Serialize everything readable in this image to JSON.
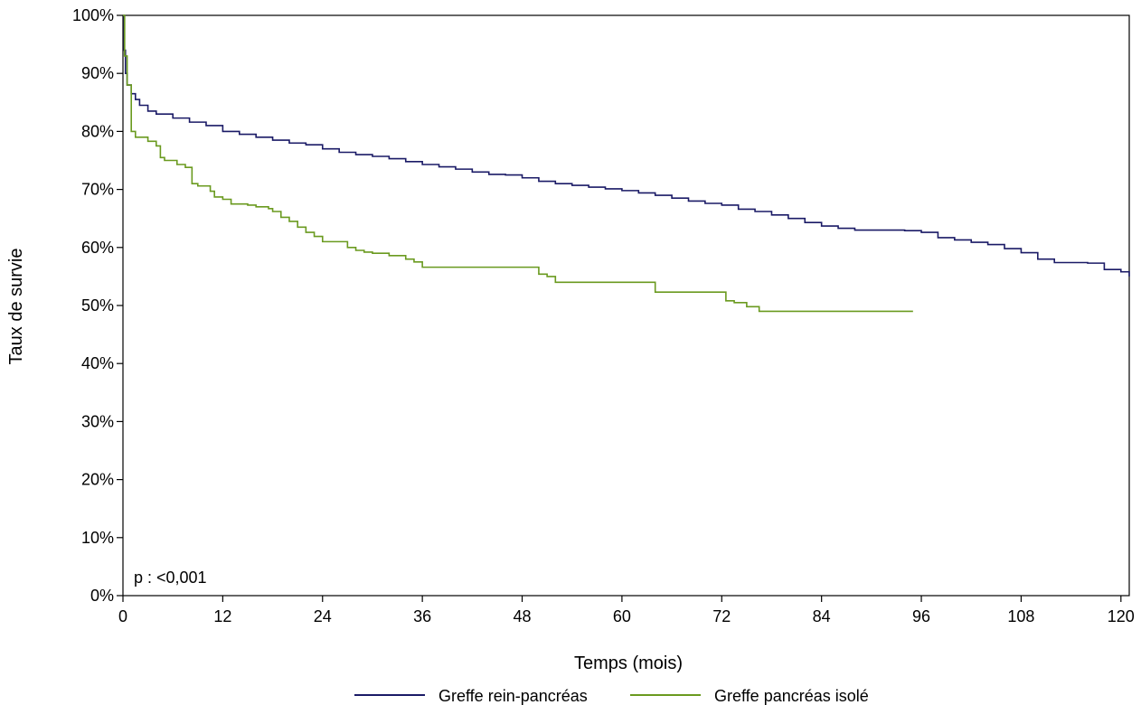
{
  "chart_data": {
    "type": "line",
    "step": true,
    "xlabel": "Temps (mois)",
    "ylabel": "Taux de survie",
    "xlim": [
      0,
      121
    ],
    "ylim": [
      0,
      100
    ],
    "x_ticks": [
      0,
      12,
      24,
      36,
      48,
      60,
      72,
      84,
      96,
      108,
      120
    ],
    "y_ticks": [
      0,
      10,
      20,
      30,
      40,
      50,
      60,
      70,
      80,
      90,
      100
    ],
    "y_tick_labels": [
      "0%",
      "10%",
      "20%",
      "30%",
      "40%",
      "50%",
      "60%",
      "70%",
      "80%",
      "90%",
      "100%"
    ],
    "grid": false,
    "legend_position": "bottom",
    "annotation": "p : <0,001",
    "series": [
      {
        "name": "Greffe rein-pancréas",
        "color": "#1a1a66",
        "points": [
          [
            0,
            100
          ],
          [
            0.15,
            94
          ],
          [
            0.3,
            90
          ],
          [
            0.5,
            88
          ],
          [
            1,
            86.5
          ],
          [
            1.5,
            85.5
          ],
          [
            2,
            84.5
          ],
          [
            3,
            83.5
          ],
          [
            4,
            83
          ],
          [
            6,
            82.3
          ],
          [
            8,
            81.6
          ],
          [
            10,
            81
          ],
          [
            12,
            80
          ],
          [
            14,
            79.5
          ],
          [
            16,
            79
          ],
          [
            18,
            78.5
          ],
          [
            20,
            78
          ],
          [
            22,
            77.7
          ],
          [
            24,
            77
          ],
          [
            26,
            76.4
          ],
          [
            28,
            76
          ],
          [
            30,
            75.7
          ],
          [
            32,
            75.3
          ],
          [
            34,
            74.8
          ],
          [
            36,
            74.3
          ],
          [
            38,
            73.9
          ],
          [
            40,
            73.5
          ],
          [
            42,
            73
          ],
          [
            44,
            72.6
          ],
          [
            46,
            72.5
          ],
          [
            48,
            72
          ],
          [
            50,
            71.4
          ],
          [
            52,
            71
          ],
          [
            54,
            70.7
          ],
          [
            56,
            70.4
          ],
          [
            58,
            70.1
          ],
          [
            60,
            69.8
          ],
          [
            62,
            69.4
          ],
          [
            64,
            69
          ],
          [
            66,
            68.5
          ],
          [
            68,
            68
          ],
          [
            70,
            67.6
          ],
          [
            72,
            67.3
          ],
          [
            74,
            66.6
          ],
          [
            76,
            66.2
          ],
          [
            78,
            65.6
          ],
          [
            80,
            65
          ],
          [
            82,
            64.3
          ],
          [
            84,
            63.7
          ],
          [
            86,
            63.3
          ],
          [
            88,
            63
          ],
          [
            90,
            63
          ],
          [
            92,
            63
          ],
          [
            94,
            62.9
          ],
          [
            96,
            62.6
          ],
          [
            98,
            61.7
          ],
          [
            100,
            61.3
          ],
          [
            102,
            60.9
          ],
          [
            104,
            60.5
          ],
          [
            106,
            59.8
          ],
          [
            108,
            59.1
          ],
          [
            110,
            58
          ],
          [
            112,
            57.4
          ],
          [
            114,
            57.4
          ],
          [
            116,
            57.3
          ],
          [
            118,
            56.2
          ],
          [
            120,
            55.8
          ],
          [
            121,
            55
          ]
        ]
      },
      {
        "name": "Greffe pancréas isolé",
        "color": "#6a9a1f",
        "points": [
          [
            0,
            100
          ],
          [
            0.2,
            93
          ],
          [
            0.5,
            88
          ],
          [
            1,
            80
          ],
          [
            1.5,
            79
          ],
          [
            3,
            78.3
          ],
          [
            4,
            77.5
          ],
          [
            4.5,
            75.5
          ],
          [
            5,
            75
          ],
          [
            6.5,
            74.3
          ],
          [
            7.5,
            73.8
          ],
          [
            8.3,
            71
          ],
          [
            9,
            70.6
          ],
          [
            10.5,
            69.7
          ],
          [
            11,
            68.7
          ],
          [
            12,
            68.3
          ],
          [
            13,
            67.5
          ],
          [
            15,
            67.3
          ],
          [
            16,
            67
          ],
          [
            17.5,
            66.7
          ],
          [
            18,
            66.2
          ],
          [
            19,
            65.2
          ],
          [
            20,
            64.5
          ],
          [
            21,
            63.5
          ],
          [
            22,
            62.6
          ],
          [
            23,
            61.9
          ],
          [
            24,
            61
          ],
          [
            26,
            61
          ],
          [
            27,
            60
          ],
          [
            28,
            59.5
          ],
          [
            29,
            59.2
          ],
          [
            30,
            59
          ],
          [
            32,
            58.6
          ],
          [
            34,
            58
          ],
          [
            35,
            57.5
          ],
          [
            36,
            56.6
          ],
          [
            40,
            56.6
          ],
          [
            45,
            56.6
          ],
          [
            49,
            56.6
          ],
          [
            50,
            55.4
          ],
          [
            51,
            55
          ],
          [
            52,
            54
          ],
          [
            56,
            54
          ],
          [
            60,
            54
          ],
          [
            63,
            54
          ],
          [
            64,
            52.3
          ],
          [
            68,
            52.3
          ],
          [
            72,
            52.3
          ],
          [
            72.5,
            50.8
          ],
          [
            73.5,
            50.5
          ],
          [
            75,
            49.8
          ],
          [
            76.5,
            49
          ],
          [
            80,
            49
          ],
          [
            85,
            49
          ],
          [
            90,
            49
          ],
          [
            95,
            49
          ]
        ]
      }
    ]
  }
}
